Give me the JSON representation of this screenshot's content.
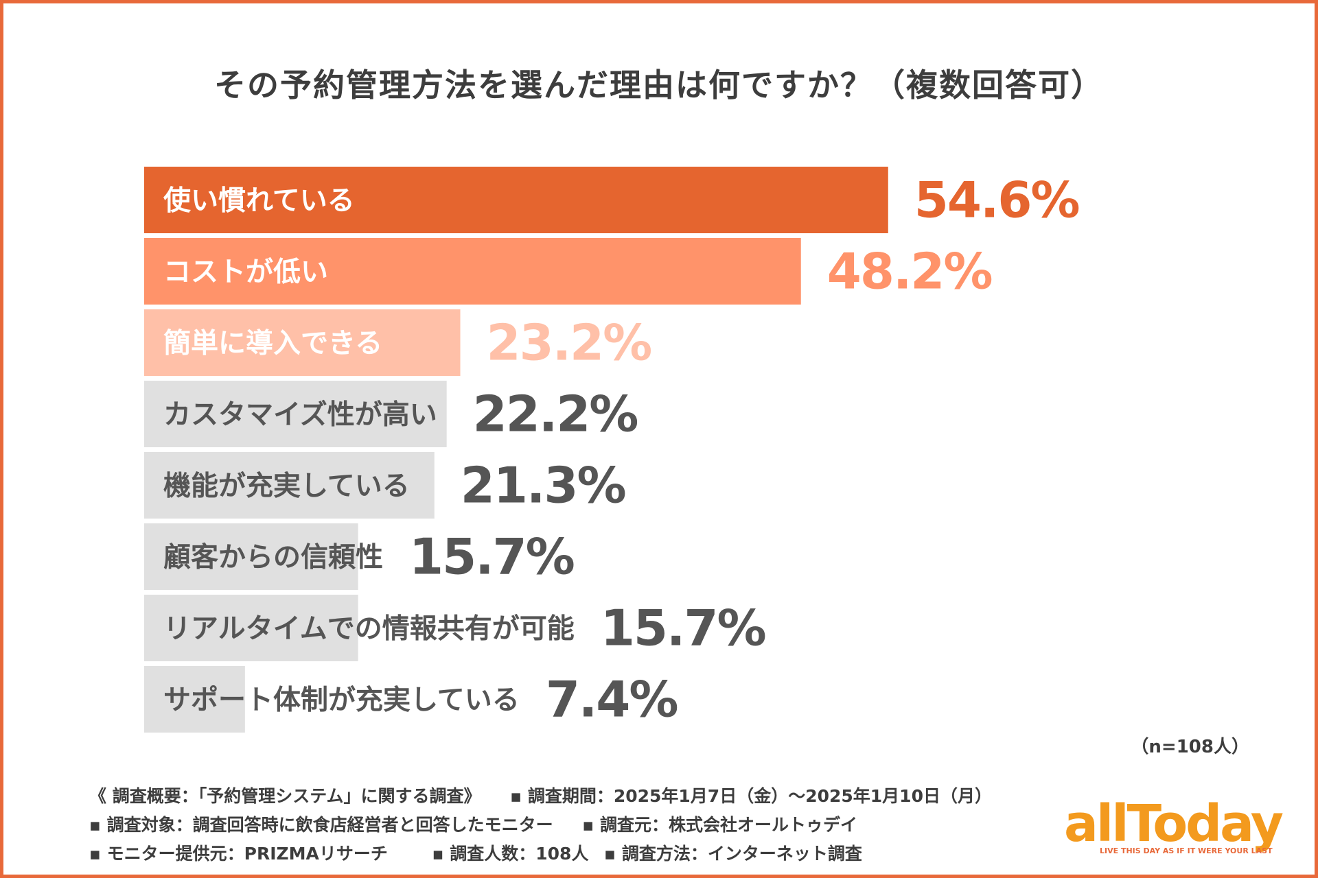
{
  "title": "その予約管理方法を選んだ理由は何ですか？（複数回答可）",
  "colors": {
    "frame": "#e8693a",
    "top1": "#e5652f",
    "top2": "#ff936a",
    "top3": "#ffc0a8",
    "rest": "#e0e0e0",
    "restText": "#555555",
    "highlightText": "#ffffff"
  },
  "chart_data": {
    "type": "bar",
    "orientation": "horizontal",
    "title": "その予約管理方法を選んだ理由は何ですか？（複数回答可）",
    "unit": "%",
    "xlim": [
      0,
      70
    ],
    "categories": [
      "使い慣れている",
      "コストが低い",
      "簡単に導入できる",
      "カスタマイズ性が高い",
      "機能が充実している",
      "顧客からの信頼性",
      "リアルタイムでの情報共有が可能",
      "サポート体制が充実している"
    ],
    "values": [
      54.6,
      48.2,
      23.2,
      22.2,
      21.3,
      15.7,
      15.7,
      7.4
    ],
    "value_labels": [
      "54.6%",
      "48.2%",
      "23.2%",
      "22.2%",
      "21.3%",
      "15.7%",
      "15.7%",
      "7.4%"
    ]
  },
  "sample_note": "（n=108人）",
  "footer": {
    "line1": [
      "《 調査概要：「予約管理システム」に関する調査》",
      "▪ 調査期間：2025年1月7日（金）〜2025年1月10日（月）"
    ],
    "line2": [
      "▪ 調査対象：調査回答時に飲食店経営者と回答したモニター",
      "▪ 調査元：株式会社オールトゥデイ"
    ],
    "line3": [
      "▪ モニター提供元：PRIZMAリサーチ",
      "▪ 調査人数：108人",
      "▪ 調査方法：インターネット調査"
    ]
  },
  "logo": {
    "text": "allToday",
    "tagline": "LIVE THIS DAY AS IF IT WERE YOUR LAST"
  }
}
